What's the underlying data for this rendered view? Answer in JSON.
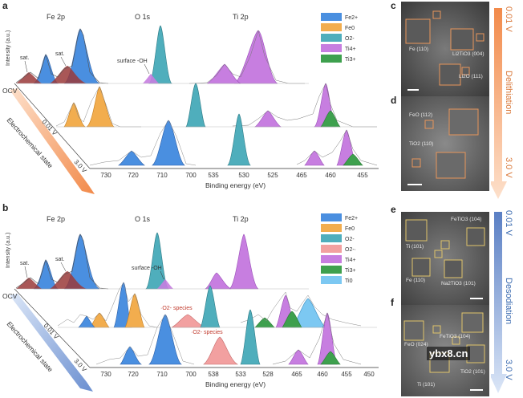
{
  "colors": {
    "fe2": "#4a8fe0",
    "fe0": "#f2ad4e",
    "o2m": "#4faebc",
    "ti4": "#c77ee0",
    "ti3": "#3ea04e",
    "o2minus": "#f2a0a0",
    "ti0": "#7cc8f2",
    "sat": "#9a3a3a",
    "raw": "#9b9b9b",
    "arrowOrange": "#f28a4a",
    "arrowBlue": "#6b8fd0",
    "lithText": "#d9783a",
    "sodText": "#3b6bb0",
    "temFrameOrange": "#e8955a",
    "temFrameYellow": "#e0c46a"
  },
  "panelA": {
    "letter": "a",
    "titles": {
      "fe": "Fe 2p",
      "o": "O 1s",
      "ti": "Ti 2p"
    },
    "ylabel": "Intensity (a.u.)",
    "ocv": "OCV",
    "state1": "0.01 V",
    "state2": "3.0 V",
    "stateAxis": "Electrochemical state",
    "sat1": "sat.",
    "sat2": "sat.",
    "surfaceOH": "surface -OH",
    "xlabel": "Binding energy (eV)",
    "ticks": [
      "730",
      "720",
      "710",
      "700",
      "535",
      "530",
      "525",
      "465",
      "460",
      "455"
    ],
    "legend": [
      "Fe2+",
      "Fe0",
      "O2-",
      "Ti4+",
      "Ti3+"
    ]
  },
  "panelB": {
    "letter": "b",
    "titles": {
      "fe": "Fe 2p",
      "o": "O 1s",
      "ti": "Ti 2p"
    },
    "ylabel": "Intensity (a.u.)",
    "ocv": "OCV",
    "state1": "0.01 V",
    "state2": "3.0 V",
    "stateAxis": "Electrochemical state",
    "sat1": "sat.",
    "sat2": "sat.",
    "surfaceOH": "surface -OH",
    "species1": "·O2- species",
    "species2": "·O2- species",
    "xlabel": "Binding energy (eV)",
    "ticks": [
      "730",
      "720",
      "710",
      "700",
      "538",
      "533",
      "528",
      "465",
      "460",
      "455",
      "450"
    ],
    "legend": [
      "Fe2+",
      "Fe0",
      "O2-",
      "O2-·",
      "Ti4+",
      "Ti3+",
      "Ti0"
    ]
  },
  "panelC": {
    "letter": "c",
    "labels": [
      "Fe (110)",
      "Li2TiO3 (004)",
      "Li2O (111)"
    ]
  },
  "panelD": {
    "letter": "d",
    "labels": [
      "FeO (112)",
      "TiO2 (110)"
    ]
  },
  "panelE": {
    "letter": "e",
    "labels": [
      "FeTiO3 (104)",
      "Ti (101)",
      "Fe (110)",
      "Na2TiO3 (101)"
    ]
  },
  "panelF": {
    "letter": "f",
    "labels": [
      "FeTiO3 (104)",
      "FeO (024)",
      "TiO2 (101)",
      "Ti (101)"
    ]
  },
  "sideLith": {
    "top": "0.01 V",
    "mid": "Delithiation",
    "bottom": "3.0 V"
  },
  "sideSod": {
    "top": "0.01 V",
    "mid": "Desodiation",
    "bottom": "3.0 V"
  },
  "watermark": "ybx8.cn"
}
